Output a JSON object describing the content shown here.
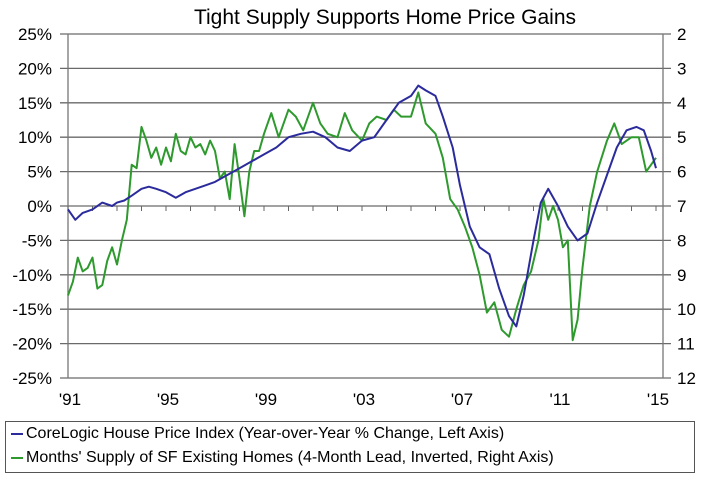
{
  "chart_data": {
    "type": "line",
    "title": "Tight Supply Supports Home Price Gains",
    "left_axis": {
      "ticks": [
        "25%",
        "20%",
        "15%",
        "10%",
        "5%",
        "0%",
        "-5%",
        "-10%",
        "-15%",
        "-20%",
        "-25%"
      ],
      "range": [
        -25,
        25
      ]
    },
    "right_axis": {
      "ticks": [
        "2",
        "3",
        "4",
        "5",
        "6",
        "7",
        "8",
        "9",
        "10",
        "11",
        "12"
      ],
      "range": [
        12,
        2
      ],
      "inverted": true
    },
    "x_ticks": [
      "'91",
      "'95",
      "'99",
      "'03",
      "'07",
      "'11",
      "'15"
    ],
    "x_tick_years": [
      1991,
      1995,
      1999,
      2003,
      2007,
      2011,
      2015
    ],
    "x_range": [
      1991,
      2015
    ],
    "grid": true,
    "legend_position": "bottom",
    "series": [
      {
        "name": "CoreLogic House Price Index (Year-over-Year % Change, Left Axis)",
        "axis": "left",
        "color": "#2b2b9c",
        "x": [
          1991.0,
          1991.3,
          1991.6,
          1992.0,
          1992.4,
          1992.8,
          1993.0,
          1993.3,
          1993.6,
          1994.0,
          1994.3,
          1994.6,
          1995.0,
          1995.4,
          1995.8,
          1996.2,
          1996.6,
          1997.0,
          1997.5,
          1998.0,
          1998.5,
          1999.0,
          1999.5,
          2000.0,
          2000.5,
          2001.0,
          2001.5,
          2002.0,
          2002.5,
          2003.0,
          2003.5,
          2004.0,
          2004.5,
          2005.0,
          2005.3,
          2005.6,
          2006.0,
          2006.3,
          2006.7,
          2007.0,
          2007.4,
          2007.8,
          2008.2,
          2008.6,
          2009.0,
          2009.3,
          2009.6,
          2010.0,
          2010.3,
          2010.6,
          2011.0,
          2011.4,
          2011.8,
          2012.2,
          2012.6,
          2013.0,
          2013.4,
          2013.8,
          2014.2,
          2014.5,
          2014.8,
          2015.0
        ],
        "values": [
          -0.5,
          -2.0,
          -1.0,
          -0.5,
          0.5,
          0.0,
          0.5,
          0.8,
          1.5,
          2.5,
          2.8,
          2.5,
          2.0,
          1.2,
          2.0,
          2.5,
          3.0,
          3.5,
          4.5,
          5.5,
          6.5,
          7.5,
          8.5,
          10.0,
          10.5,
          10.8,
          10.0,
          8.5,
          8.0,
          9.5,
          10.0,
          12.5,
          15.0,
          16.0,
          17.5,
          16.8,
          16.0,
          13.0,
          8.5,
          3.0,
          -3.0,
          -6.0,
          -7.0,
          -12.0,
          -16.0,
          -17.5,
          -13.0,
          -5.0,
          0.5,
          2.5,
          0.0,
          -3.0,
          -5.0,
          -4.0,
          0.5,
          4.5,
          8.5,
          11.0,
          11.5,
          11.0,
          8.0,
          5.5
        ]
      },
      {
        "name": "Months' Supply of SF Existing Homes (4-Month Lead, Inverted, Right Axis)",
        "axis": "right",
        "color": "#2e9a2e",
        "x": [
          1991.0,
          1991.2,
          1991.4,
          1991.6,
          1991.8,
          1992.0,
          1992.2,
          1992.4,
          1992.6,
          1992.8,
          1993.0,
          1993.2,
          1993.4,
          1993.6,
          1993.8,
          1994.0,
          1994.2,
          1994.4,
          1994.6,
          1994.8,
          1995.0,
          1995.2,
          1995.4,
          1995.6,
          1995.8,
          1996.0,
          1996.2,
          1996.4,
          1996.6,
          1996.8,
          1997.0,
          1997.2,
          1997.4,
          1997.6,
          1997.8,
          1998.0,
          1998.2,
          1998.4,
          1998.6,
          1998.8,
          1999.0,
          1999.3,
          1999.6,
          2000.0,
          2000.3,
          2000.6,
          2001.0,
          2001.3,
          2001.6,
          2002.0,
          2002.3,
          2002.6,
          2003.0,
          2003.3,
          2003.6,
          2004.0,
          2004.3,
          2004.6,
          2005.0,
          2005.3,
          2005.6,
          2006.0,
          2006.3,
          2006.6,
          2006.9,
          2007.2,
          2007.5,
          2007.8,
          2008.1,
          2008.4,
          2008.7,
          2009.0,
          2009.3,
          2009.6,
          2009.9,
          2010.2,
          2010.4,
          2010.6,
          2010.8,
          2011.0,
          2011.2,
          2011.4,
          2011.6,
          2011.8,
          2012.0,
          2012.3,
          2012.6,
          2013.0,
          2013.3,
          2013.6,
          2014.0,
          2014.3,
          2014.6,
          2014.8,
          2015.0
        ],
        "values": [
          9.6,
          9.2,
          8.5,
          8.9,
          8.8,
          8.5,
          9.4,
          9.3,
          8.6,
          8.2,
          8.7,
          8.0,
          7.4,
          5.8,
          5.9,
          4.7,
          5.1,
          5.6,
          5.3,
          5.8,
          5.3,
          5.7,
          4.9,
          5.4,
          5.5,
          5.0,
          5.3,
          5.2,
          5.5,
          5.1,
          5.4,
          6.2,
          6.0,
          6.8,
          5.2,
          6.2,
          7.3,
          6.0,
          5.4,
          5.4,
          4.9,
          4.3,
          5.0,
          4.2,
          4.4,
          4.8,
          4.0,
          4.6,
          4.9,
          5.0,
          4.3,
          4.8,
          5.1,
          4.6,
          4.4,
          4.5,
          4.2,
          4.4,
          4.4,
          3.7,
          4.6,
          4.9,
          5.6,
          6.8,
          7.1,
          7.6,
          8.2,
          9.0,
          10.1,
          9.8,
          10.6,
          10.8,
          10.0,
          9.3,
          8.9,
          8.0,
          6.8,
          7.4,
          7.0,
          7.4,
          8.2,
          8.0,
          10.9,
          10.3,
          8.8,
          7.0,
          6.0,
          5.1,
          4.6,
          5.2,
          5.0,
          5.0,
          6.0,
          5.8,
          5.6
        ]
      }
    ]
  }
}
